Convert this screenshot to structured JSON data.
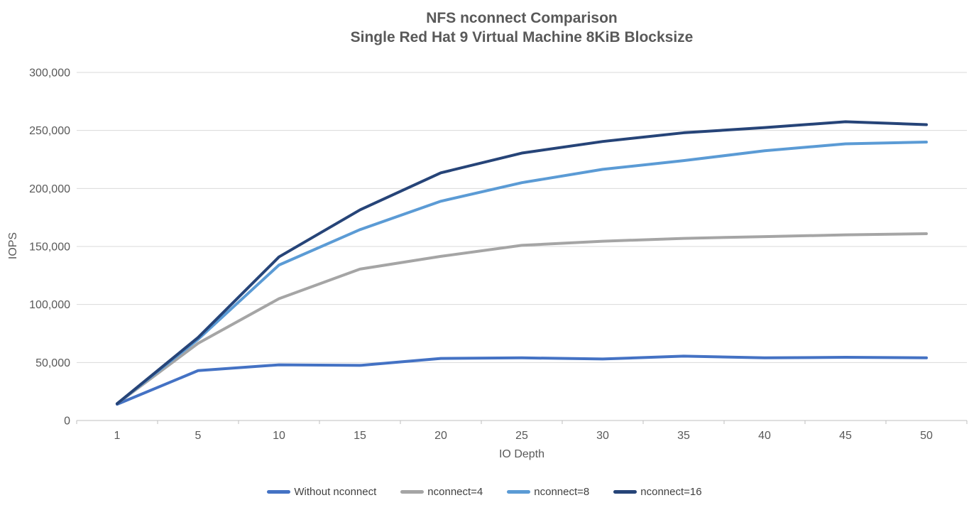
{
  "title": {
    "line1": "NFS nconnect Comparison",
    "line2": "Single Red Hat 9 Virtual Machine 8KiB Blocksize"
  },
  "chart_data": {
    "type": "line",
    "title": "NFS nconnect Comparison",
    "subtitle": "Single Red Hat 9 Virtual Machine 8KiB Blocksize",
    "xlabel": "IO Depth",
    "ylabel": "IOPS",
    "x": [
      1,
      5,
      10,
      15,
      20,
      25,
      30,
      35,
      40,
      45,
      50
    ],
    "x_labels": [
      "1",
      "5",
      "10",
      "15",
      "20",
      "25",
      "30",
      "35",
      "40",
      "45",
      "50"
    ],
    "ylim": [
      0,
      300000
    ],
    "y_ticks": [
      {
        "value": 0,
        "label": "0"
      },
      {
        "value": 50000,
        "label": "50,000"
      },
      {
        "value": 100000,
        "label": "100,000"
      },
      {
        "value": 150000,
        "label": "150,000"
      },
      {
        "value": 200000,
        "label": "200,000"
      },
      {
        "value": 250000,
        "label": "250,000"
      },
      {
        "value": 300000,
        "label": "300,000"
      }
    ],
    "grid": "horizontal",
    "legend_position": "bottom",
    "series": [
      {
        "name": "Without nconnect",
        "color": "#4472C4",
        "values": [
          14000,
          43000,
          48000,
          47500,
          53500,
          54000,
          53000,
          55500,
          54000,
          54500,
          54000
        ]
      },
      {
        "name": "nconnect=4",
        "color": "#A5A5A5",
        "values": [
          14500,
          66500,
          105000,
          130500,
          141500,
          151000,
          154500,
          157000,
          158500,
          160000,
          161000
        ]
      },
      {
        "name": "nconnect=8",
        "color": "#5B9BD5",
        "values": [
          14500,
          70000,
          134000,
          164500,
          189000,
          205000,
          216500,
          224000,
          232500,
          238500,
          240000
        ]
      },
      {
        "name": "nconnect=16",
        "color": "#264478",
        "values": [
          14500,
          71500,
          141000,
          181500,
          213500,
          230500,
          240500,
          248000,
          252500,
          257500,
          255000
        ]
      }
    ]
  },
  "colors": {
    "background": "#ffffff",
    "gridline": "#d9d9d9",
    "axis_line": "#bfbfbf",
    "tick_text": "#595959",
    "title_text": "#595959",
    "legend_text": "#404040"
  }
}
